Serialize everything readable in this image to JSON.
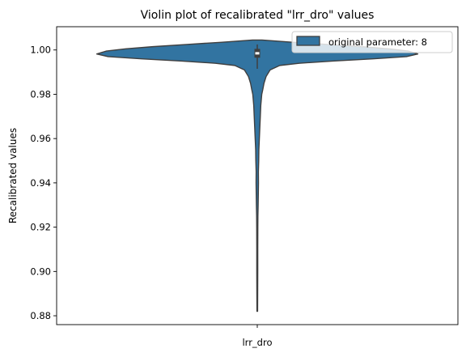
{
  "chart_data": {
    "type": "violin",
    "title": "Violin plot of recalibrated \"lrr_dro\" values",
    "xlabel": "",
    "ylabel": "Recalibrated values",
    "categories": [
      "lrr_dro"
    ],
    "ylim": [
      0.876,
      1.0105
    ],
    "yticks": [
      0.88,
      0.9,
      0.92,
      0.94,
      0.96,
      0.98,
      1.0
    ],
    "ytick_labels": [
      "0.88",
      "0.90",
      "0.92",
      "0.94",
      "0.96",
      "0.98",
      "1.00"
    ],
    "grid": false,
    "legend": {
      "position": "top-right",
      "entries": [
        "original parameter: 8"
      ]
    },
    "series": [
      {
        "name": "original parameter: 8",
        "category": "lrr_dro",
        "color": "#3274a1",
        "edge_color": "#3f3f3f",
        "min": 0.882,
        "max": 1.0045,
        "q1": 0.9965,
        "median": 0.9985,
        "q3": 1.0005,
        "whisker_low": 0.9915,
        "whisker_high": 1.0025,
        "density_profile": [
          [
            1.0045,
            0.03
          ],
          [
            1.0035,
            0.22
          ],
          [
            1.0025,
            0.44
          ],
          [
            1.0015,
            0.65
          ],
          [
            1.0005,
            0.82
          ],
          [
            0.9995,
            0.94
          ],
          [
            0.9982,
            1.0
          ],
          [
            0.997,
            0.93
          ],
          [
            0.996,
            0.72
          ],
          [
            0.995,
            0.47
          ],
          [
            0.994,
            0.26
          ],
          [
            0.993,
            0.14
          ],
          [
            0.991,
            0.08
          ],
          [
            0.988,
            0.055
          ],
          [
            0.985,
            0.042
          ],
          [
            0.982,
            0.034
          ],
          [
            0.98,
            0.028
          ],
          [
            0.975,
            0.022
          ],
          [
            0.97,
            0.019
          ],
          [
            0.965,
            0.016
          ],
          [
            0.96,
            0.013
          ],
          [
            0.955,
            0.01
          ],
          [
            0.95,
            0.009
          ],
          [
            0.945,
            0.007
          ],
          [
            0.94,
            0.0075
          ],
          [
            0.935,
            0.0065
          ],
          [
            0.93,
            0.0055
          ],
          [
            0.925,
            0.004
          ],
          [
            0.92,
            0.0035
          ],
          [
            0.91,
            0.003
          ],
          [
            0.9,
            0.003
          ],
          [
            0.89,
            0.0025
          ],
          [
            0.882,
            0.002
          ]
        ]
      }
    ]
  }
}
